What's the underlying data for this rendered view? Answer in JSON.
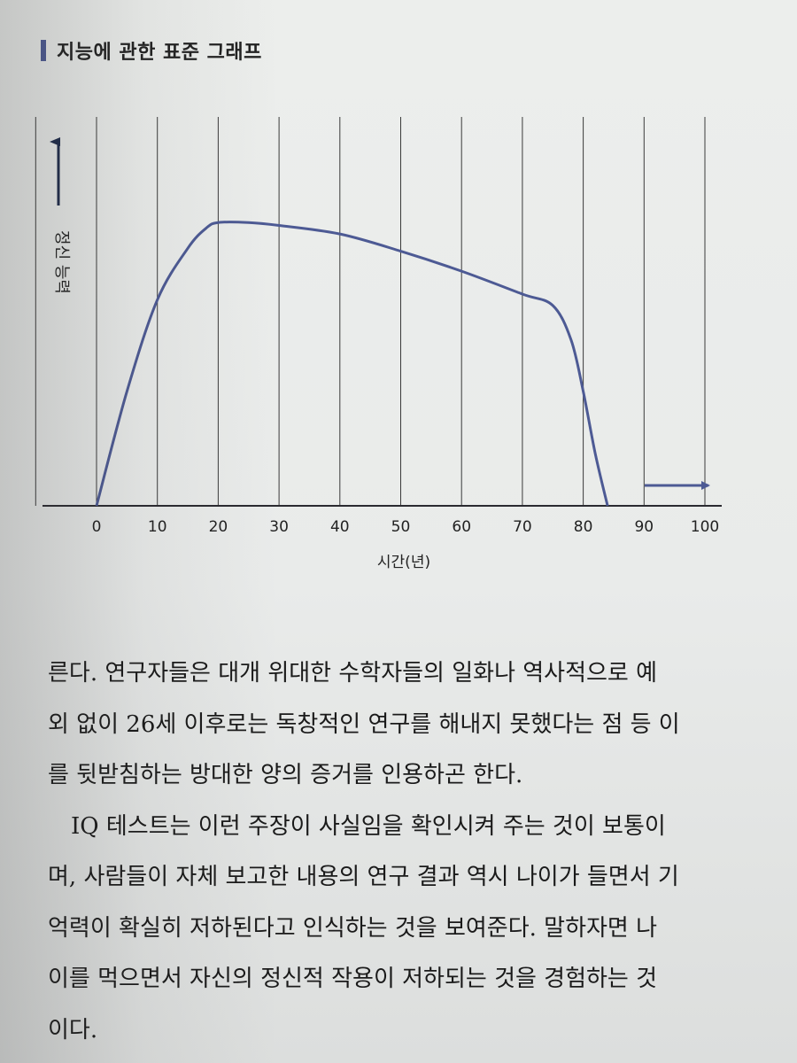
{
  "heading": "지능에 관한 표준 그래프",
  "chart_data": {
    "type": "line",
    "ylabel": "정신 능력",
    "xlabel": "시간(년)",
    "x_ticks": [
      "0",
      "10",
      "20",
      "30",
      "40",
      "50",
      "60",
      "70",
      "80",
      "90",
      "100"
    ],
    "xlim": [
      -10,
      100
    ],
    "ylim": [
      0,
      100
    ],
    "grid": "vertical",
    "series": [
      {
        "color": "#4d5a94",
        "x": [
          0,
          5,
          10,
          15,
          18,
          20,
          25,
          30,
          40,
          50,
          60,
          70,
          75,
          78,
          80,
          82,
          84
        ],
        "y": [
          0,
          40,
          72,
          90,
          97,
          99,
          99,
          98,
          95,
          89,
          82,
          74,
          70,
          58,
          40,
          18,
          0
        ]
      }
    ]
  },
  "paragraphs": [
    "른다. 연구자들은 대개 위대한 수학자들의 일화나 역사적으로 예",
    "외 없이 26세 이후로는 독창적인 연구를 해내지 못했다는 점 등 이",
    "를 뒷받침하는 방대한 양의 증거를 인용하곤 한다.",
    "IQ 테스트는 이런 주장이 사실임을 확인시켜 주는 것이 보통이",
    "며, 사람들이 자체 보고한 내용의 연구 결과 역시 나이가 들면서 기",
    "억력이 확실히 저하된다고 인식하는 것을 보여준다. 말하자면 나",
    "이를 먹으면서 자신의 정신적 작용이 저하되는 것을 경험하는 것",
    "이다."
  ]
}
